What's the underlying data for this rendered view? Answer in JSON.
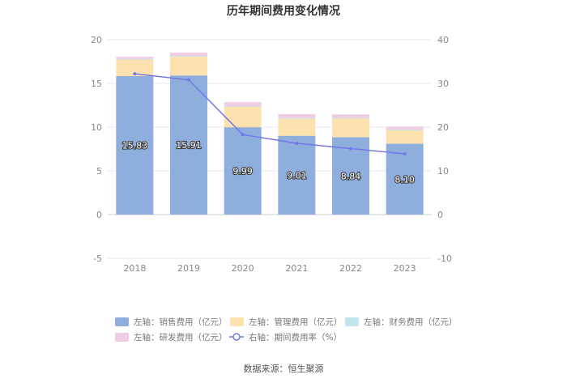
{
  "chart_data": {
    "type": "bar",
    "title": "历年期间费用变化情况",
    "categories": [
      "2018",
      "2019",
      "2020",
      "2021",
      "2022",
      "2023"
    ],
    "left_axis": {
      "ylim": [
        -5,
        20
      ],
      "ticks": [
        "-5",
        "0",
        "5",
        "10",
        "15",
        "20"
      ]
    },
    "right_axis": {
      "ylim": [
        -10,
        40
      ],
      "ticks": [
        "-10",
        "0",
        "10",
        "20",
        "30",
        "40"
      ]
    },
    "series": [
      {
        "name": "左轴：销售费用（亿元）",
        "kind": "bar-stacked",
        "axis": "left",
        "color": "#8eaedd",
        "values": [
          15.83,
          15.91,
          9.99,
          9.01,
          8.84,
          8.1
        ],
        "labels": [
          "15.83",
          "15.91",
          "9.99",
          "9.01",
          "8.84",
          "8.10"
        ]
      },
      {
        "name": "左轴：管理费用（亿元）",
        "kind": "bar-stacked",
        "axis": "left",
        "color": "#fde2b0",
        "values": [
          1.95,
          2.2,
          2.4,
          2.0,
          2.2,
          1.6
        ]
      },
      {
        "name": "左轴：财务费用（亿元）",
        "kind": "bar-stacked",
        "axis": "left",
        "color": "#bfe6ea",
        "values": [
          0.02,
          0.02,
          0.02,
          0.02,
          0.02,
          0.02
        ]
      },
      {
        "name": "左轴：研发费用（亿元）",
        "kind": "bar-stacked",
        "axis": "left",
        "color": "#efcde5",
        "values": [
          0.25,
          0.4,
          0.45,
          0.45,
          0.4,
          0.35
        ]
      },
      {
        "name": "右轴：期间费用率（%）",
        "kind": "line",
        "axis": "right",
        "color": "#7277e8",
        "values": [
          32.2,
          30.8,
          18.3,
          16.3,
          15.1,
          13.9
        ]
      }
    ],
    "grid": true,
    "legend_position": "bottom"
  },
  "footer": {
    "source": "数据来源：恒生聚源"
  }
}
